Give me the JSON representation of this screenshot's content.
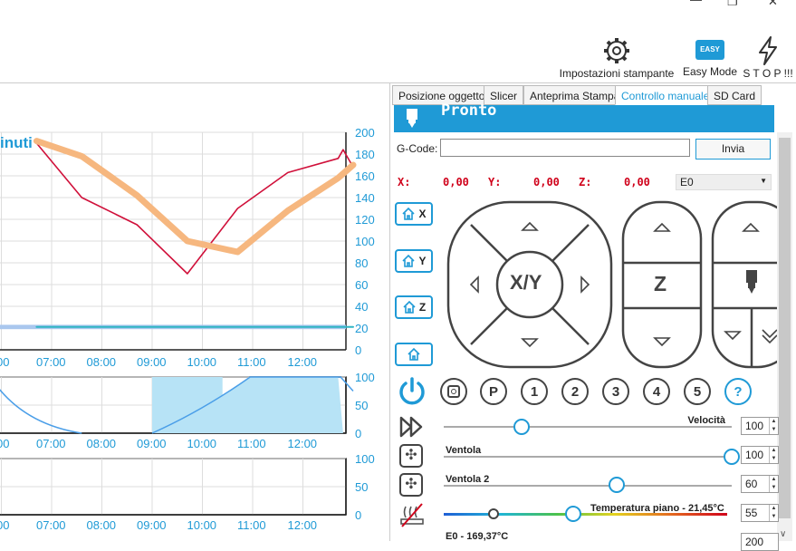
{
  "window": {
    "minimize": "—",
    "maximize": "❐",
    "close": "✕"
  },
  "toolbar": {
    "printer_settings": "Impostazioni stampante",
    "easy_mode": "Easy Mode",
    "easy_badge": "EASY",
    "stop": "S T O P !!!"
  },
  "tabs": [
    {
      "label": "Posizione oggetto"
    },
    {
      "label": "Slicer"
    },
    {
      "label": "Anteprima Stampa"
    },
    {
      "label": "Controllo manuale"
    },
    {
      "label": "SD Card"
    }
  ],
  "status": {
    "text": "Pronto"
  },
  "gcode": {
    "label": "G-Code:",
    "value": "",
    "send": "Invia"
  },
  "coords": {
    "x_label": "X:",
    "x_value": "0,00",
    "y_label": "Y:",
    "y_value": "0,00",
    "z_label": "Z:",
    "z_value": "0,00",
    "extruder": "E0"
  },
  "home": {
    "x": "X",
    "y": "Y",
    "z": "Z"
  },
  "jog": {
    "xy": "X/Y",
    "z": "Z"
  },
  "buttons": {
    "p": "P",
    "b1": "1",
    "b2": "2",
    "b3": "3",
    "b4": "4",
    "b5": "5",
    "help": "?"
  },
  "sliders": {
    "speed": {
      "label": "Velocità",
      "value": "100",
      "level": 0.27
    },
    "fan": {
      "label": "Ventola",
      "value": "100",
      "level": 1.0
    },
    "fan2": {
      "label": "Ventola 2",
      "value": "60",
      "level": 0.6
    },
    "bed": {
      "label": "Temperatura piano - 21,45°C",
      "value": "55",
      "level": 0.45
    },
    "e0": {
      "label": "E0 - 169,37°C",
      "value": "200"
    }
  },
  "chart_data": [
    {
      "type": "line",
      "title": "inuti",
      "x": [
        "07:00",
        "08:00",
        "09:00",
        "10:00",
        "11:00",
        "12:00"
      ],
      "x_first_partial": "00",
      "ylim": [
        0,
        200
      ],
      "yticks": [
        0,
        20,
        40,
        60,
        80,
        100,
        120,
        140,
        160,
        180,
        200
      ],
      "series": [
        {
          "color": "#d0103a",
          "points": [
            [
              -0.3,
              190
            ],
            [
              0.6,
              140
            ],
            [
              1.7,
              115
            ],
            [
              2.7,
              70
            ],
            [
              3.7,
              130
            ],
            [
              4.7,
              163
            ],
            [
              5.7,
              176
            ],
            [
              5.8,
              184
            ],
            [
              6.0,
              168
            ]
          ]
        },
        {
          "color": "#f6b77f",
          "points": [
            [
              -0.3,
              192
            ],
            [
              0.6,
              178
            ],
            [
              1.7,
              142
            ],
            [
              2.7,
              100
            ],
            [
              3.7,
              90
            ],
            [
              4.7,
              128
            ],
            [
              5.7,
              158
            ],
            [
              6.0,
              170
            ]
          ]
        },
        {
          "color": "#2fb5c4",
          "points": [
            [
              -0.3,
              21
            ],
            [
              6.0,
              21
            ]
          ]
        }
      ]
    },
    {
      "type": "area",
      "x": [
        "07:00",
        "08:00",
        "09:00",
        "10:00",
        "11:00",
        "12:00"
      ],
      "x_first_partial": "00",
      "ylim": [
        0,
        100
      ],
      "yticks": [
        0,
        50,
        100
      ]
    },
    {
      "type": "line",
      "x": [
        "07:00",
        "08:00",
        "09:00",
        "10:00",
        "11:00",
        "12:00"
      ],
      "x_first_partial": "00",
      "ylim": [
        0,
        100
      ],
      "yticks": [
        0,
        50,
        100
      ]
    }
  ]
}
